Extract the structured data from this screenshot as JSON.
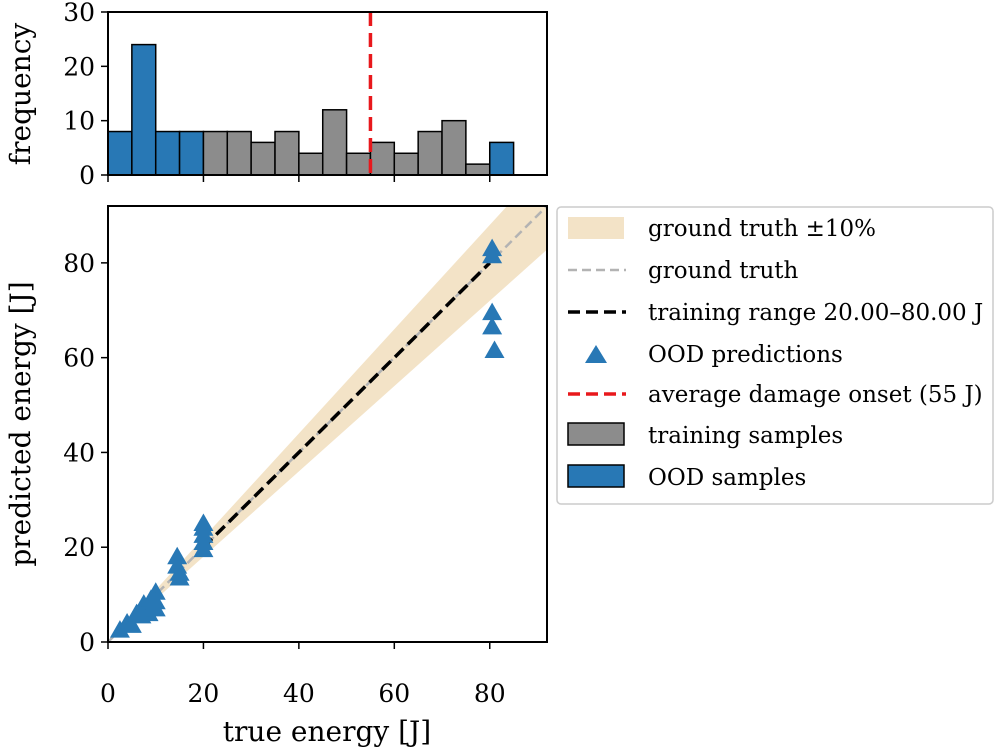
{
  "chart_data": [
    {
      "type": "bar",
      "name": "histogram",
      "ylabel": "frequency",
      "xlim": [
        0,
        92
      ],
      "ylim": [
        0,
        30
      ],
      "yticks": [
        0,
        10,
        20,
        30
      ],
      "xticks": [
        0,
        20,
        40,
        60,
        80
      ],
      "bin_width": 5,
      "bins": [
        {
          "x0": 0,
          "count": 8,
          "group": "ood"
        },
        {
          "x0": 5,
          "count": 24,
          "group": "ood"
        },
        {
          "x0": 10,
          "count": 8,
          "group": "ood"
        },
        {
          "x0": 15,
          "count": 8,
          "group": "ood"
        },
        {
          "x0": 20,
          "count": 8,
          "group": "training"
        },
        {
          "x0": 25,
          "count": 8,
          "group": "training"
        },
        {
          "x0": 30,
          "count": 6,
          "group": "training"
        },
        {
          "x0": 35,
          "count": 8,
          "group": "training"
        },
        {
          "x0": 40,
          "count": 4,
          "group": "training"
        },
        {
          "x0": 45,
          "count": 12,
          "group": "training"
        },
        {
          "x0": 50,
          "count": 4,
          "group": "training"
        },
        {
          "x0": 55,
          "count": 6,
          "group": "training"
        },
        {
          "x0": 60,
          "count": 4,
          "group": "training"
        },
        {
          "x0": 65,
          "count": 8,
          "group": "training"
        },
        {
          "x0": 70,
          "count": 10,
          "group": "training"
        },
        {
          "x0": 75,
          "count": 2,
          "group": "training"
        },
        {
          "x0": 80,
          "count": 6,
          "group": "ood"
        }
      ],
      "damage_onset": 55
    },
    {
      "type": "scatter",
      "name": "parity",
      "xlabel": "true energy [J]",
      "ylabel": "predicted energy [J]",
      "xlim": [
        0,
        92
      ],
      "ylim": [
        0,
        92
      ],
      "xticks": [
        0,
        20,
        40,
        60,
        80
      ],
      "yticks": [
        0,
        20,
        40,
        60,
        80
      ],
      "band_fraction": 0.1,
      "training_range": [
        20,
        80
      ],
      "ood_predictions": [
        [
          2.5,
          2.5
        ],
        [
          4,
          4
        ],
        [
          5,
          3.5
        ],
        [
          6,
          6
        ],
        [
          7,
          5.5
        ],
        [
          7.5,
          8
        ],
        [
          8,
          7
        ],
        [
          8.5,
          6
        ],
        [
          9,
          9
        ],
        [
          9.5,
          7.5
        ],
        [
          10,
          10.5
        ],
        [
          10,
          8.5
        ],
        [
          10,
          7
        ],
        [
          14.5,
          18
        ],
        [
          14.5,
          16
        ],
        [
          15,
          14.5
        ],
        [
          15,
          13.5
        ],
        [
          20,
          25
        ],
        [
          20,
          24
        ],
        [
          20,
          22.5
        ],
        [
          20,
          21
        ],
        [
          20,
          19.5
        ],
        [
          80.5,
          83
        ],
        [
          80.5,
          81.5
        ],
        [
          80.5,
          69.5
        ],
        [
          80.5,
          66.5
        ],
        [
          81,
          61.5
        ]
      ]
    }
  ],
  "legend": {
    "band": "ground truth ±10%",
    "truth": "ground truth",
    "training_range": "training range 20.00–80.00 J",
    "ood_predictions": "OOD predictions",
    "damage_onset": "average damage onset (55 J)",
    "training_samples": "training samples",
    "ood_samples": "OOD samples"
  },
  "colors": {
    "ood": "#2878b5",
    "training": "#8c8c8c",
    "band": "#f3e3c7",
    "truth": "#b3b3b3",
    "training_line": "#000000",
    "onset": "#e8181c"
  }
}
